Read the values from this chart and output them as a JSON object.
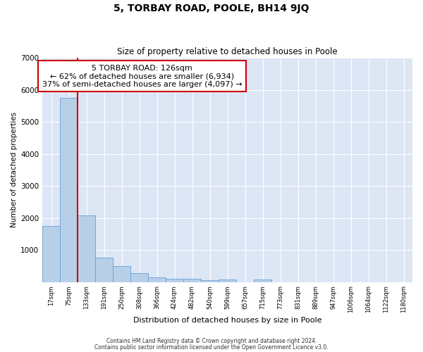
{
  "title": "5, TORBAY ROAD, POOLE, BH14 9JQ",
  "subtitle": "Size of property relative to detached houses in Poole",
  "xlabel": "Distribution of detached houses by size in Poole",
  "ylabel": "Number of detached properties",
  "bar_color": "#b8cfe8",
  "bar_edge_color": "#6a9fd8",
  "background_color": "#dce6f5",
  "grid_color": "#ffffff",
  "categories": [
    "17sqm",
    "75sqm",
    "133sqm",
    "191sqm",
    "250sqm",
    "308sqm",
    "366sqm",
    "424sqm",
    "482sqm",
    "540sqm",
    "599sqm",
    "657sqm",
    "715sqm",
    "773sqm",
    "831sqm",
    "889sqm",
    "947sqm",
    "1006sqm",
    "1064sqm",
    "1122sqm",
    "1180sqm"
  ],
  "values": [
    1750,
    5750,
    2080,
    760,
    490,
    270,
    150,
    110,
    90,
    60,
    80,
    0,
    80,
    0,
    0,
    0,
    0,
    0,
    0,
    0,
    0
  ],
  "red_line_x": 1.5,
  "annotation_text": "5 TORBAY ROAD: 126sqm\n← 62% of detached houses are smaller (6,934)\n37% of semi-detached houses are larger (4,097) →",
  "annotation_box_color": "#ffffff",
  "annotation_border_color": "#cc0000",
  "property_line_color": "#cc0000",
  "ylim": [
    0,
    7000
  ],
  "yticks": [
    0,
    1000,
    2000,
    3000,
    4000,
    5000,
    6000,
    7000
  ],
  "footer1": "Contains HM Land Registry data © Crown copyright and database right 2024.",
  "footer2": "Contains public sector information licensed under the Open Government Licence v3.0."
}
